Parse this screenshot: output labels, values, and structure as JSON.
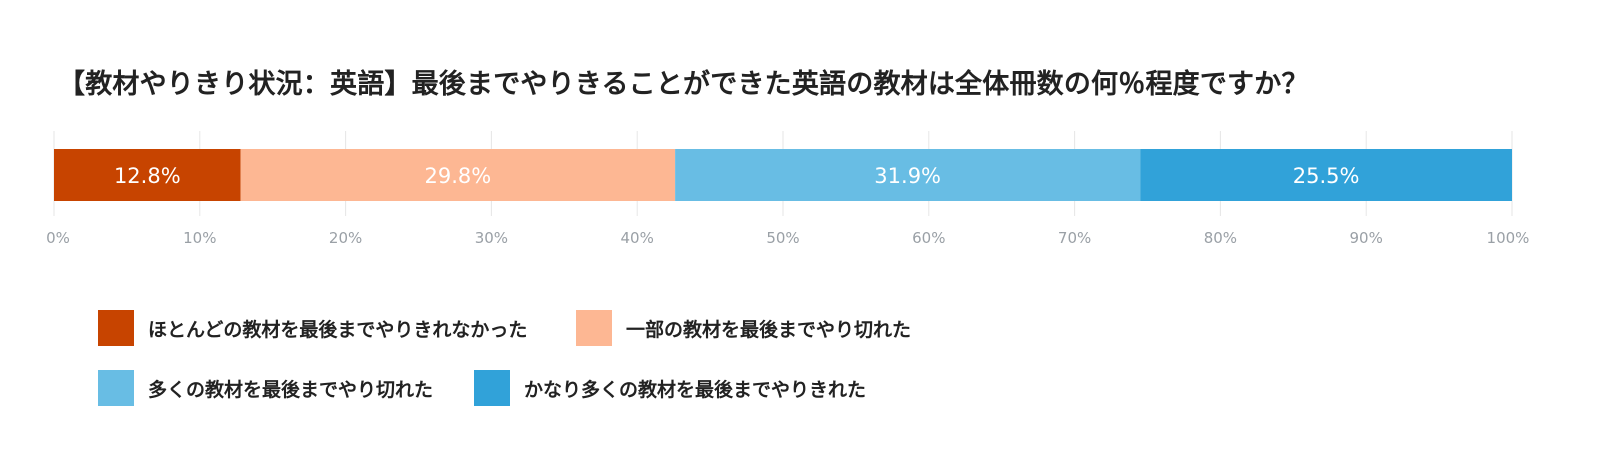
{
  "chart_data": {
    "type": "bar",
    "orientation": "horizontal-stacked-100",
    "title": "【教材やりきり状況：英語】最後までやりきることができた英語の教材は全体冊数の何％程度ですか？",
    "series": [
      {
        "name": "ほとんどの教材を最後までやりきれなかった",
        "value": 12.8,
        "label": "12.8%",
        "color": "#c74400"
      },
      {
        "name": "一部の教材を最後までやり切れた",
        "value": 29.8,
        "label": "29.8%",
        "color": "#fdb793"
      },
      {
        "name": "多くの教材を最後までやり切れた",
        "value": 31.9,
        "label": "31.9%",
        "color": "#68bde4"
      },
      {
        "name": "かなり多くの教材を最後までやりきれた",
        "value": 25.5,
        "label": "25.5%",
        "color": "#31a2d9"
      }
    ],
    "xlim": [
      0,
      100
    ],
    "xticks": [
      "0%",
      "10%",
      "20%",
      "30%",
      "40%",
      "50%",
      "60%",
      "70%",
      "80%",
      "90%",
      "100%"
    ],
    "grid": true,
    "legend_position": "bottom-left"
  }
}
